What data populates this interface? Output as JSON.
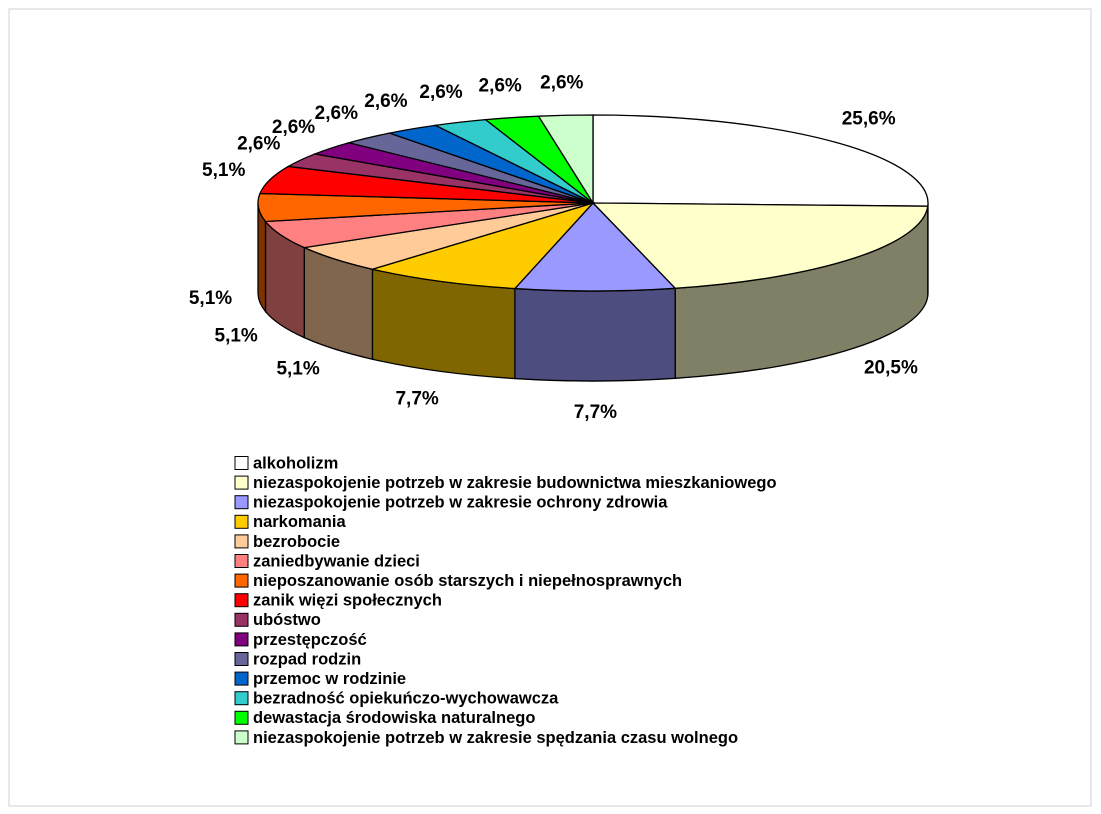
{
  "chart_data": {
    "type": "pie",
    "categories": [
      "alkoholizm",
      "niezaspokojenie potrzeb w zakresie budownictwa mieszkaniowego",
      "niezaspokojenie potrzeb w zakresie ochrony zdrowia",
      "narkomania",
      "bezrobocie",
      "zaniedbywanie dzieci",
      "nieposzanowanie osób starszych i niepełnosprawnych",
      "zanik więzi społecznych",
      "ubóstwo",
      "przestępczość",
      "rozpad rodzin",
      "przemoc w rodzinie",
      "bezradność opiekuńczo-wychowawcza",
      "dewastacja środowiska naturalnego",
      "niezaspokojenie potrzeb w zakresie spędzania czasu wolnego"
    ],
    "values": [
      25.6,
      20.5,
      7.7,
      7.7,
      5.1,
      5.1,
      5.1,
      5.1,
      2.6,
      2.6,
      2.6,
      2.6,
      2.6,
      2.6,
      2.6
    ],
    "value_labels": [
      "25,6%",
      "20,5%",
      "7,7%",
      "7,7%",
      "5,1%",
      "5,1%",
      "5,1%",
      "5,1%",
      "2,6%",
      "2,6%",
      "2,6%",
      "2,6%",
      "2,6%",
      "2,6%",
      "2,6%"
    ],
    "colors": [
      "#ffffff",
      "#ffffcc",
      "#9999ff",
      "#ffcc00",
      "#ffcc99",
      "#ff8080",
      "#ff6600",
      "#ff0000",
      "#993366",
      "#800080",
      "#666699",
      "#0066cc",
      "#33cccc",
      "#00ff00",
      "#ccffcc"
    ],
    "legend": "bottom"
  }
}
